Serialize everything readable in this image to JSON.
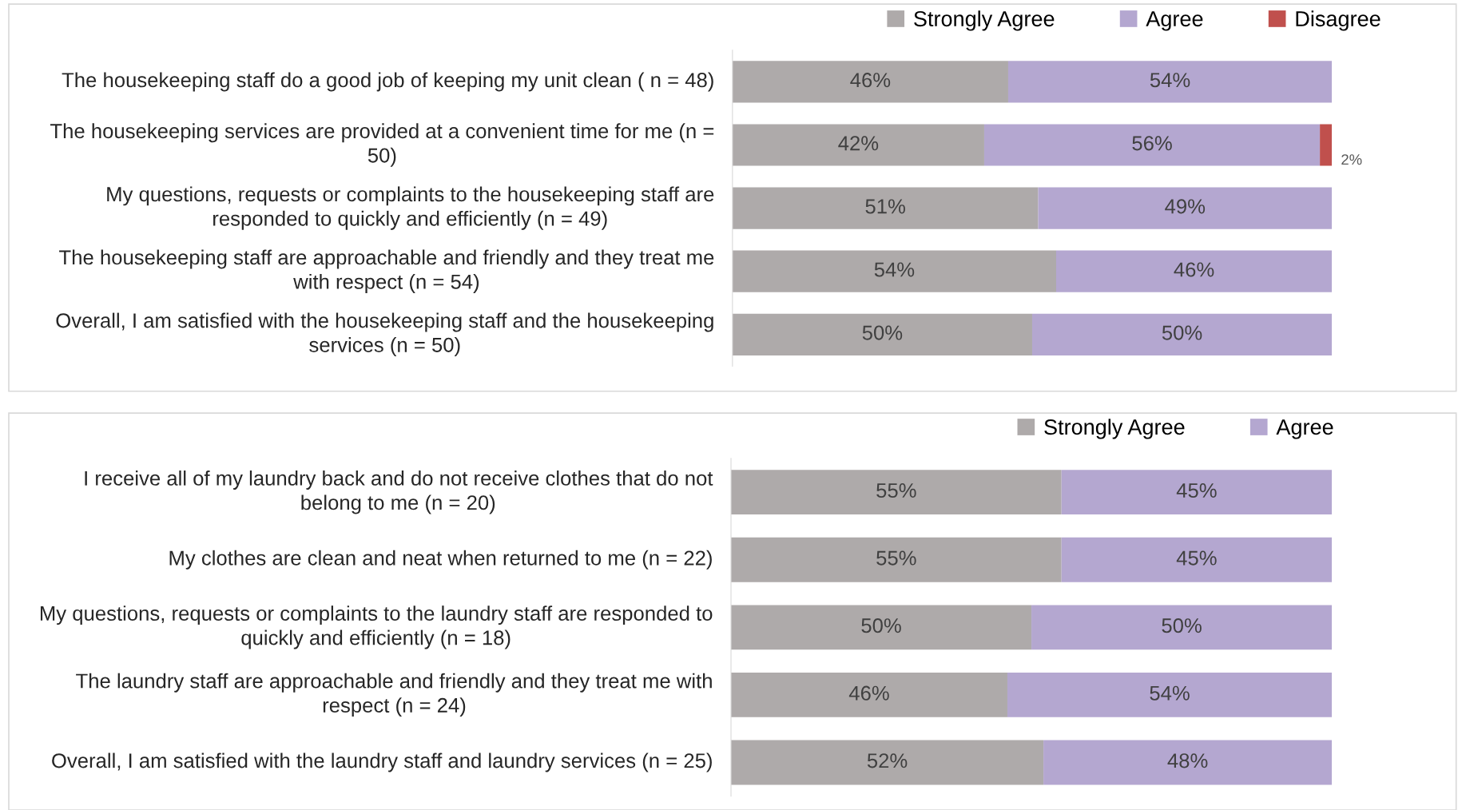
{
  "chart_data": [
    {
      "type": "bar",
      "orientation": "horizontal",
      "stacked": true,
      "legend": "top",
      "categories": [
        "The housekeeping staff do a good job of keeping my unit clean ( n = 48)",
        "The housekeeping services are provided at a convenient time for me (n = 50)",
        "My questions, requests or complaints to the housekeeping staff are responded to quickly and efficiently (n = 49)",
        "The housekeeping staff are approachable and friendly and they treat me with respect (n = 54)",
        "Overall, I am satisfied with the housekeeping staff and the housekeeping services (n = 50)"
      ],
      "series": [
        {
          "name": "Strongly Agree",
          "color": "#aeaaaa",
          "values": [
            46,
            42,
            51,
            54,
            50
          ],
          "value_labels": [
            "46%",
            "42%",
            "51%",
            "54%",
            "50%"
          ]
        },
        {
          "name": "Agree",
          "color": "#b4a7d0",
          "values": [
            54,
            56,
            49,
            46,
            50
          ],
          "value_labels": [
            "54%",
            "56%",
            "49%",
            "46%",
            "50%"
          ]
        },
        {
          "name": "Disagree",
          "color": "#c0504d",
          "values": [
            null,
            2,
            null,
            null,
            null
          ],
          "value_labels": [
            null,
            "2%",
            null,
            null,
            null
          ]
        }
      ]
    },
    {
      "type": "bar",
      "orientation": "horizontal",
      "stacked": true,
      "legend": "top",
      "categories": [
        "I receive all of my laundry back and do not receive clothes that do not belong to me (n = 20)",
        "My clothes are clean and neat when returned to me (n = 22)",
        "My questions, requests or complaints to the laundry staff are responded to quickly and efficiently (n = 18)",
        "The laundry staff are approachable and friendly and they treat me with respect (n = 24)",
        "Overall, I am satisfied with the laundry staff and laundry services (n = 25)"
      ],
      "series": [
        {
          "name": "Strongly Agree",
          "color": "#aeaaaa",
          "values": [
            55,
            55,
            50,
            46,
            52
          ],
          "value_labels": [
            "55%",
            "55%",
            "50%",
            "46%",
            "52%"
          ]
        },
        {
          "name": "Agree",
          "color": "#b4a7d0",
          "values": [
            45,
            45,
            50,
            54,
            48
          ],
          "value_labels": [
            "45%",
            "45%",
            "50%",
            "54%",
            "48%"
          ]
        }
      ]
    }
  ]
}
